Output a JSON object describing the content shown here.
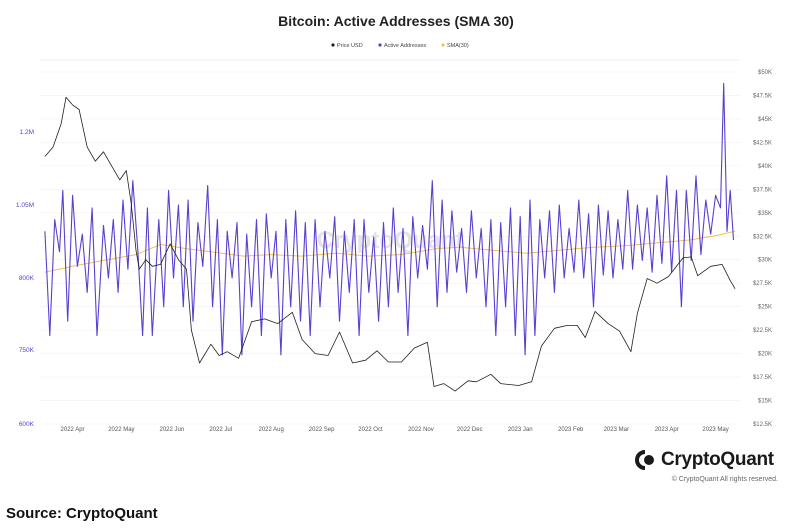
{
  "chart_data": {
    "type": "line",
    "title": "Bitcoin: Active Addresses (SMA 30)",
    "legend": [
      {
        "name": "Price USD",
        "color": "#1f1f1f"
      },
      {
        "name": "Active Addresses",
        "color": "#5b3fd0"
      },
      {
        "name": "SMA(30)",
        "color": "#f2c14e"
      }
    ],
    "legend_position": "top-center",
    "grid": true,
    "x_ticks": [
      "2022 Apr",
      "2022 May",
      "2022 Jun",
      "2022 Jul",
      "2022 Aug",
      "2022 Sep",
      "2022 Oct",
      "2022 Nov",
      "2022 Dec",
      "2023 Jan",
      "2023 Feb",
      "2023 Mar",
      "2023 Apr",
      "2023 May"
    ],
    "left_axis": {
      "ticks": [
        "600K",
        "750K",
        "800K",
        "1.05M",
        "1.2M"
      ],
      "tick_values": [
        600000,
        750000,
        800000,
        1050000,
        1200000
      ],
      "color": "#5b3fd0"
    },
    "right_axis": {
      "ticks": [
        "$12.5K",
        "$15K",
        "$17.5K",
        "$20K",
        "$22.5K",
        "$25K",
        "$27.5K",
        "$30K",
        "$32.5K",
        "$35K",
        "$37.5K",
        "$40K",
        "$42.5K",
        "$45K",
        "$47.5K",
        "$50K"
      ],
      "tick_values": [
        12500,
        15000,
        17500,
        20000,
        22500,
        25000,
        27500,
        30000,
        32500,
        35000,
        37500,
        40000,
        42500,
        45000,
        47500,
        50000
      ]
    },
    "price_usd": [
      [
        "2022-03-15",
        41000
      ],
      [
        "2022-03-20",
        42000
      ],
      [
        "2022-03-25",
        44500
      ],
      [
        "2022-03-28",
        47300
      ],
      [
        "2022-04-01",
        46500
      ],
      [
        "2022-04-05",
        46000
      ],
      [
        "2022-04-10",
        42000
      ],
      [
        "2022-04-15",
        40500
      ],
      [
        "2022-04-20",
        41500
      ],
      [
        "2022-04-25",
        40000
      ],
      [
        "2022-04-30",
        38500
      ],
      [
        "2022-05-04",
        39500
      ],
      [
        "2022-05-07",
        36000
      ],
      [
        "2022-05-10",
        31000
      ],
      [
        "2022-05-12",
        29000
      ],
      [
        "2022-05-16",
        30000
      ],
      [
        "2022-05-20",
        29300
      ],
      [
        "2022-05-25",
        29500
      ],
      [
        "2022-05-31",
        31700
      ],
      [
        "2022-06-05",
        30000
      ],
      [
        "2022-06-10",
        29000
      ],
      [
        "2022-06-13",
        22500
      ],
      [
        "2022-06-18",
        19000
      ],
      [
        "2022-06-25",
        21000
      ],
      [
        "2022-06-30",
        19800
      ],
      [
        "2022-07-05",
        20200
      ],
      [
        "2022-07-12",
        19500
      ],
      [
        "2022-07-20",
        23400
      ],
      [
        "2022-07-28",
        23700
      ],
      [
        "2022-08-05",
        23200
      ],
      [
        "2022-08-14",
        24400
      ],
      [
        "2022-08-20",
        21500
      ],
      [
        "2022-08-28",
        20000
      ],
      [
        "2022-09-05",
        19800
      ],
      [
        "2022-09-12",
        22300
      ],
      [
        "2022-09-20",
        19000
      ],
      [
        "2022-09-28",
        19300
      ],
      [
        "2022-10-05",
        20300
      ],
      [
        "2022-10-12",
        19100
      ],
      [
        "2022-10-20",
        19100
      ],
      [
        "2022-10-28",
        20600
      ],
      [
        "2022-11-05",
        21200
      ],
      [
        "2022-11-09",
        16500
      ],
      [
        "2022-11-15",
        16800
      ],
      [
        "2022-11-22",
        16000
      ],
      [
        "2022-11-30",
        17100
      ],
      [
        "2022-12-05",
        17000
      ],
      [
        "2022-12-14",
        17800
      ],
      [
        "2022-12-20",
        16800
      ],
      [
        "2022-12-31",
        16600
      ],
      [
        "2023-01-08",
        17000
      ],
      [
        "2023-01-14",
        20800
      ],
      [
        "2023-01-22",
        22700
      ],
      [
        "2023-01-30",
        23000
      ],
      [
        "2023-02-05",
        23000
      ],
      [
        "2023-02-10",
        21700
      ],
      [
        "2023-02-16",
        24500
      ],
      [
        "2023-02-24",
        23200
      ],
      [
        "2023-03-03",
        22400
      ],
      [
        "2023-03-10",
        20200
      ],
      [
        "2023-03-14",
        24300
      ],
      [
        "2023-03-20",
        28000
      ],
      [
        "2023-03-26",
        27500
      ],
      [
        "2023-04-02",
        28200
      ],
      [
        "2023-04-11",
        30200
      ],
      [
        "2023-04-16",
        30300
      ],
      [
        "2023-04-20",
        28300
      ],
      [
        "2023-04-28",
        29300
      ],
      [
        "2023-05-05",
        29500
      ],
      [
        "2023-05-10",
        27800
      ],
      [
        "2023-05-13",
        26900
      ]
    ],
    "active_addresses": [
      [
        "2022-03-15",
        960000
      ],
      [
        "2022-03-18",
        760000
      ],
      [
        "2022-03-21",
        1000000
      ],
      [
        "2022-03-24",
        890000
      ],
      [
        "2022-03-26",
        1080000
      ],
      [
        "2022-03-29",
        770000
      ],
      [
        "2022-04-01",
        1070000
      ],
      [
        "2022-04-04",
        840000
      ],
      [
        "2022-04-07",
        950000
      ],
      [
        "2022-04-10",
        790000
      ],
      [
        "2022-04-13",
        1040000
      ],
      [
        "2022-04-16",
        760000
      ],
      [
        "2022-04-20",
        980000
      ],
      [
        "2022-04-23",
        800000
      ],
      [
        "2022-04-26",
        1000000
      ],
      [
        "2022-04-29",
        790000
      ],
      [
        "2022-05-02",
        1060000
      ],
      [
        "2022-05-05",
        830000
      ],
      [
        "2022-05-08",
        1100000
      ],
      [
        "2022-05-11",
        900000
      ],
      [
        "2022-05-14",
        760000
      ],
      [
        "2022-05-17",
        1040000
      ],
      [
        "2022-05-20",
        760000
      ],
      [
        "2022-05-24",
        1000000
      ],
      [
        "2022-05-27",
        780000
      ],
      [
        "2022-05-30",
        1080000
      ],
      [
        "2022-06-02",
        800000
      ],
      [
        "2022-06-05",
        1050000
      ],
      [
        "2022-06-08",
        780000
      ],
      [
        "2022-06-11",
        1060000
      ],
      [
        "2022-06-14",
        770000
      ],
      [
        "2022-06-17",
        990000
      ],
      [
        "2022-06-20",
        840000
      ],
      [
        "2022-06-23",
        1090000
      ],
      [
        "2022-06-26",
        780000
      ],
      [
        "2022-06-29",
        1000000
      ],
      [
        "2022-07-02",
        740000
      ],
      [
        "2022-07-05",
        960000
      ],
      [
        "2022-07-08",
        800000
      ],
      [
        "2022-07-11",
        990000
      ],
      [
        "2022-07-14",
        740000
      ],
      [
        "2022-07-17",
        950000
      ],
      [
        "2022-07-20",
        780000
      ],
      [
        "2022-07-23",
        1000000
      ],
      [
        "2022-07-26",
        760000
      ],
      [
        "2022-07-29",
        1020000
      ],
      [
        "2022-08-01",
        800000
      ],
      [
        "2022-08-04",
        960000
      ],
      [
        "2022-08-07",
        740000
      ],
      [
        "2022-08-10",
        1000000
      ],
      [
        "2022-08-13",
        780000
      ],
      [
        "2022-08-16",
        1030000
      ],
      [
        "2022-08-19",
        770000
      ],
      [
        "2022-08-22",
        990000
      ],
      [
        "2022-08-25",
        760000
      ],
      [
        "2022-08-28",
        1000000
      ],
      [
        "2022-08-31",
        780000
      ],
      [
        "2022-09-03",
        960000
      ],
      [
        "2022-09-06",
        800000
      ],
      [
        "2022-09-09",
        1010000
      ],
      [
        "2022-09-12",
        770000
      ],
      [
        "2022-09-15",
        960000
      ],
      [
        "2022-09-18",
        790000
      ],
      [
        "2022-09-21",
        1000000
      ],
      [
        "2022-09-24",
        760000
      ],
      [
        "2022-09-27",
        1000000
      ],
      [
        "2022-09-30",
        790000
      ],
      [
        "2022-10-03",
        940000
      ],
      [
        "2022-10-06",
        770000
      ],
      [
        "2022-10-09",
        990000
      ],
      [
        "2022-10-12",
        780000
      ],
      [
        "2022-10-15",
        1040000
      ],
      [
        "2022-10-18",
        790000
      ],
      [
        "2022-10-21",
        970000
      ],
      [
        "2022-10-24",
        760000
      ],
      [
        "2022-10-27",
        1010000
      ],
      [
        "2022-10-30",
        800000
      ],
      [
        "2022-11-02",
        980000
      ],
      [
        "2022-11-05",
        830000
      ],
      [
        "2022-11-08",
        1100000
      ],
      [
        "2022-11-11",
        780000
      ],
      [
        "2022-11-14",
        1060000
      ],
      [
        "2022-11-17",
        790000
      ],
      [
        "2022-11-20",
        1030000
      ],
      [
        "2022-11-23",
        820000
      ],
      [
        "2022-11-26",
        970000
      ],
      [
        "2022-11-29",
        790000
      ],
      [
        "2022-12-02",
        1030000
      ],
      [
        "2022-12-05",
        800000
      ],
      [
        "2022-12-08",
        970000
      ],
      [
        "2022-12-11",
        780000
      ],
      [
        "2022-12-14",
        1000000
      ],
      [
        "2022-12-17",
        760000
      ],
      [
        "2022-12-20",
        990000
      ],
      [
        "2022-12-23",
        780000
      ],
      [
        "2022-12-26",
        1040000
      ],
      [
        "2022-12-29",
        760000
      ],
      [
        "2023-01-01",
        1010000
      ],
      [
        "2023-01-04",
        740000
      ],
      [
        "2023-01-07",
        1060000
      ],
      [
        "2023-01-10",
        760000
      ],
      [
        "2023-01-13",
        1000000
      ],
      [
        "2023-01-16",
        800000
      ],
      [
        "2023-01-19",
        1030000
      ],
      [
        "2023-01-22",
        790000
      ],
      [
        "2023-01-25",
        1050000
      ],
      [
        "2023-01-28",
        800000
      ],
      [
        "2023-01-31",
        970000
      ],
      [
        "2023-02-03",
        820000
      ],
      [
        "2023-02-06",
        1060000
      ],
      [
        "2023-02-09",
        800000
      ],
      [
        "2023-02-12",
        1020000
      ],
      [
        "2023-02-15",
        780000
      ],
      [
        "2023-02-18",
        1050000
      ],
      [
        "2023-02-21",
        810000
      ],
      [
        "2023-02-24",
        1030000
      ],
      [
        "2023-02-27",
        800000
      ],
      [
        "2023-03-02",
        1000000
      ],
      [
        "2023-03-05",
        830000
      ],
      [
        "2023-03-08",
        1080000
      ],
      [
        "2023-03-11",
        830000
      ],
      [
        "2023-03-14",
        1050000
      ],
      [
        "2023-03-17",
        860000
      ],
      [
        "2023-03-20",
        1040000
      ],
      [
        "2023-03-23",
        820000
      ],
      [
        "2023-03-26",
        1070000
      ],
      [
        "2023-03-29",
        850000
      ],
      [
        "2023-04-01",
        1110000
      ],
      [
        "2023-04-04",
        820000
      ],
      [
        "2023-04-07",
        1080000
      ],
      [
        "2023-04-10",
        780000
      ],
      [
        "2023-04-13",
        1080000
      ],
      [
        "2023-04-16",
        860000
      ],
      [
        "2023-04-19",
        1110000
      ],
      [
        "2023-04-22",
        880000
      ],
      [
        "2023-04-25",
        1060000
      ],
      [
        "2023-04-28",
        950000
      ],
      [
        "2023-05-01",
        1070000
      ],
      [
        "2023-05-04",
        1040000
      ],
      [
        "2023-05-06",
        1300000
      ],
      [
        "2023-05-08",
        960000
      ],
      [
        "2023-05-10",
        1080000
      ],
      [
        "2023-05-12",
        930000
      ]
    ],
    "sma_30": [
      [
        "2022-03-15",
        820000
      ],
      [
        "2022-04-01",
        840000
      ],
      [
        "2022-04-20",
        860000
      ],
      [
        "2022-05-10",
        880000
      ],
      [
        "2022-05-25",
        915000
      ],
      [
        "2022-06-10",
        900000
      ],
      [
        "2022-06-25",
        890000
      ],
      [
        "2022-07-15",
        875000
      ],
      [
        "2022-08-01",
        880000
      ],
      [
        "2022-08-20",
        875000
      ],
      [
        "2022-09-10",
        885000
      ],
      [
        "2022-09-30",
        875000
      ],
      [
        "2022-10-20",
        880000
      ],
      [
        "2022-11-10",
        900000
      ],
      [
        "2022-11-25",
        905000
      ],
      [
        "2022-12-15",
        895000
      ],
      [
        "2023-01-05",
        885000
      ],
      [
        "2023-01-25",
        895000
      ],
      [
        "2023-02-15",
        905000
      ],
      [
        "2023-03-05",
        910000
      ],
      [
        "2023-03-25",
        920000
      ],
      [
        "2023-04-15",
        930000
      ],
      [
        "2023-05-01",
        945000
      ],
      [
        "2023-05-13",
        960000
      ]
    ]
  }
}
